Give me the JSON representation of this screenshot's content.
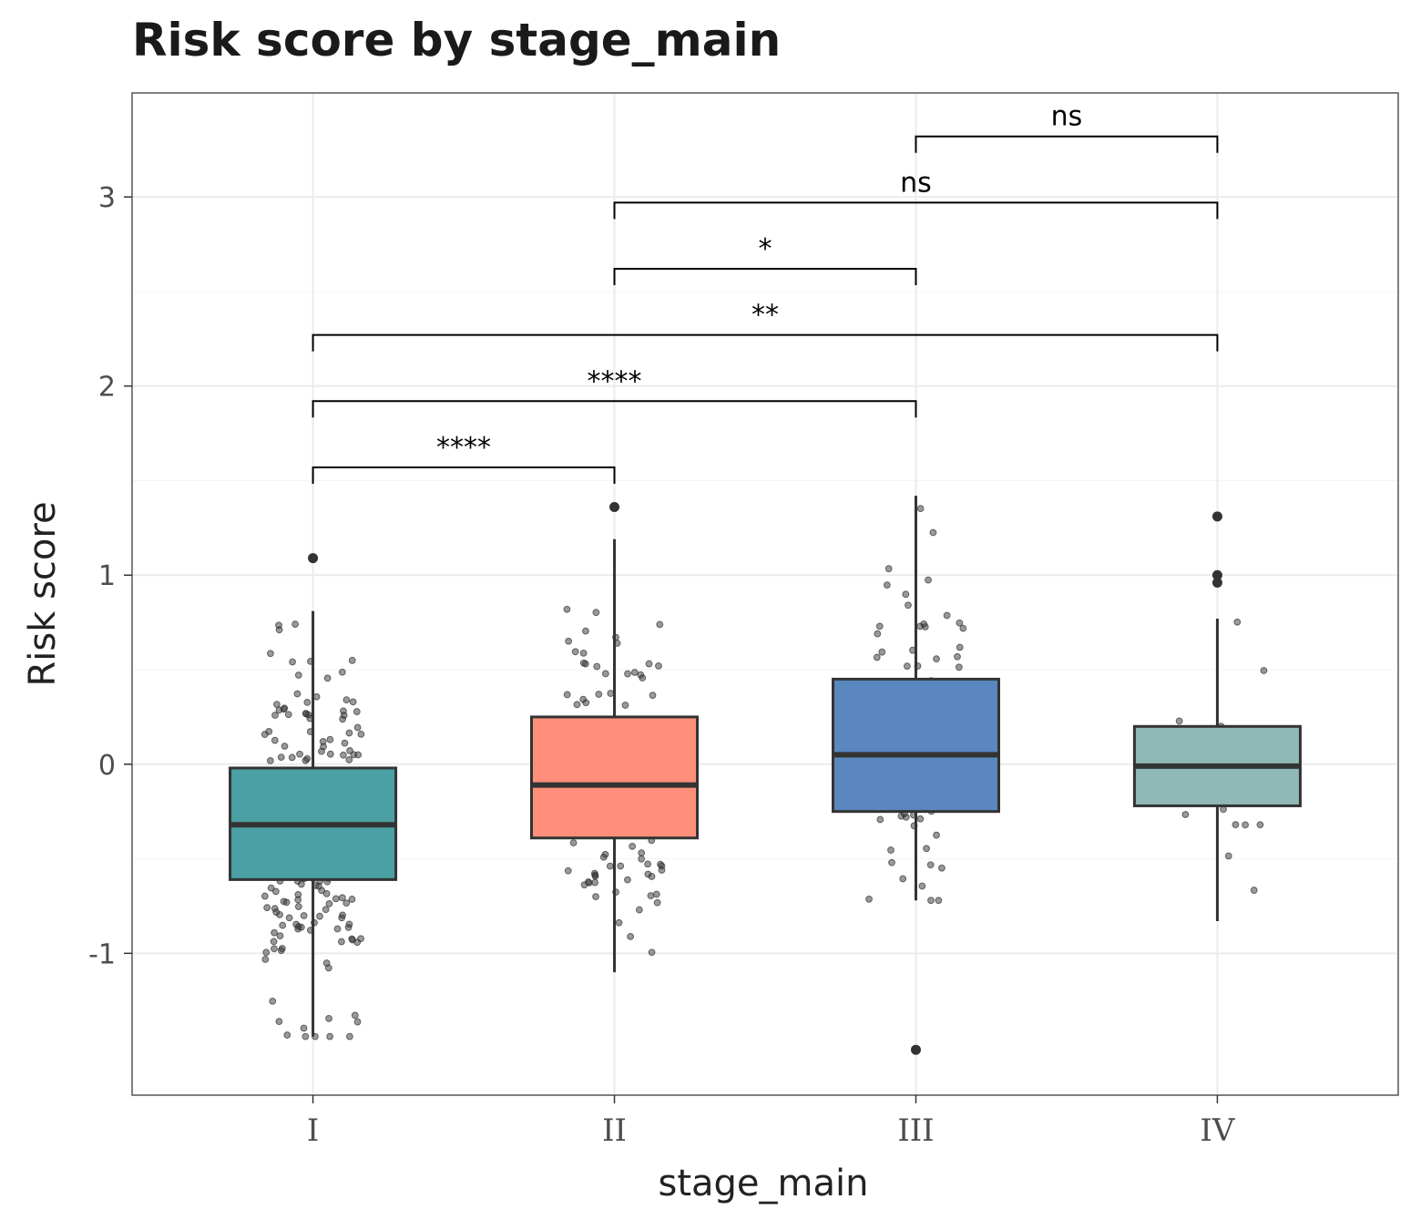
{
  "chart_data": {
    "type": "box",
    "title": "Risk score by stage_main",
    "xlabel": "stage_main",
    "ylabel": "Risk score",
    "categories": [
      "I",
      "II",
      "III",
      "IV"
    ],
    "ylim": [
      -1.75,
      3.55
    ],
    "yticks": [
      -1,
      0,
      1,
      2,
      3
    ],
    "ytick_labels": [
      "-1",
      "0",
      "1",
      "2",
      "3"
    ],
    "grid": true,
    "legend": "none",
    "boxes": [
      {
        "category": "I",
        "color": "#4aa0a3",
        "q1": -0.61,
        "median": -0.32,
        "q3": -0.02,
        "whisker_low": -1.44,
        "whisker_high": 0.81,
        "outliers": [
          1.09
        ]
      },
      {
        "category": "II",
        "color": "#ff8f7a",
        "q1": -0.39,
        "median": -0.11,
        "q3": 0.25,
        "whisker_low": -1.1,
        "whisker_high": 1.19,
        "outliers": [
          1.36
        ]
      },
      {
        "category": "III",
        "color": "#5a87bf",
        "q1": -0.25,
        "median": 0.05,
        "q3": 0.45,
        "whisker_low": -0.72,
        "whisker_high": 1.42,
        "outliers": [
          -1.51
        ]
      },
      {
        "category": "IV",
        "color": "#8fb8b6",
        "q1": -0.22,
        "median": -0.01,
        "q3": 0.2,
        "whisker_low": -0.83,
        "whisker_high": 0.77,
        "outliers": [
          1.31,
          1.0,
          0.96
        ]
      }
    ],
    "jitter_counts": [
      230,
      115,
      78,
      25
    ],
    "comparisons": [
      {
        "from": "I",
        "to": "II",
        "y": 1.57,
        "label": "****"
      },
      {
        "from": "I",
        "to": "III",
        "y": 1.92,
        "label": "****"
      },
      {
        "from": "I",
        "to": "IV",
        "y": 2.27,
        "label": "**"
      },
      {
        "from": "II",
        "to": "III",
        "y": 2.62,
        "label": "*"
      },
      {
        "from": "II",
        "to": "IV",
        "y": 2.97,
        "label": "ns"
      },
      {
        "from": "III",
        "to": "IV",
        "y": 3.32,
        "label": "ns"
      }
    ]
  }
}
